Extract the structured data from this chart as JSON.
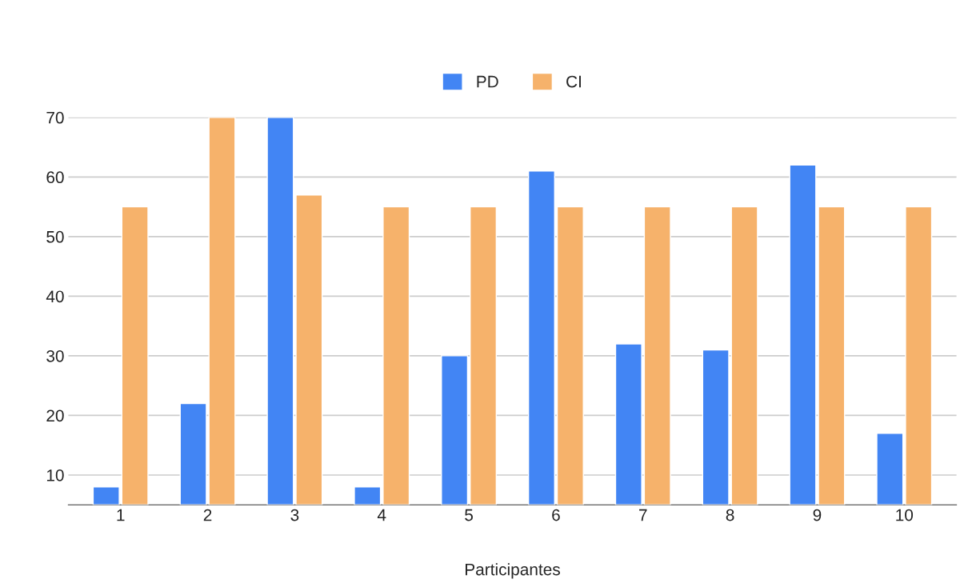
{
  "chart_data": {
    "type": "bar",
    "xlabel": "Participantes",
    "categories": [
      "1",
      "2",
      "3",
      "4",
      "5",
      "6",
      "7",
      "8",
      "9",
      "10"
    ],
    "series": [
      {
        "name": "PD",
        "color": "#4285f4",
        "values": [
          8,
          22,
          70,
          8,
          30,
          61,
          32,
          31,
          62,
          17
        ]
      },
      {
        "name": "CI",
        "color": "#f6b26b",
        "values": [
          55,
          70,
          57,
          55,
          55,
          55,
          55,
          55,
          55,
          55
        ]
      }
    ],
    "ylim": [
      5,
      70
    ],
    "yticks": [
      10,
      20,
      30,
      40,
      50,
      60,
      70
    ],
    "grid": "y",
    "legend": "top"
  }
}
